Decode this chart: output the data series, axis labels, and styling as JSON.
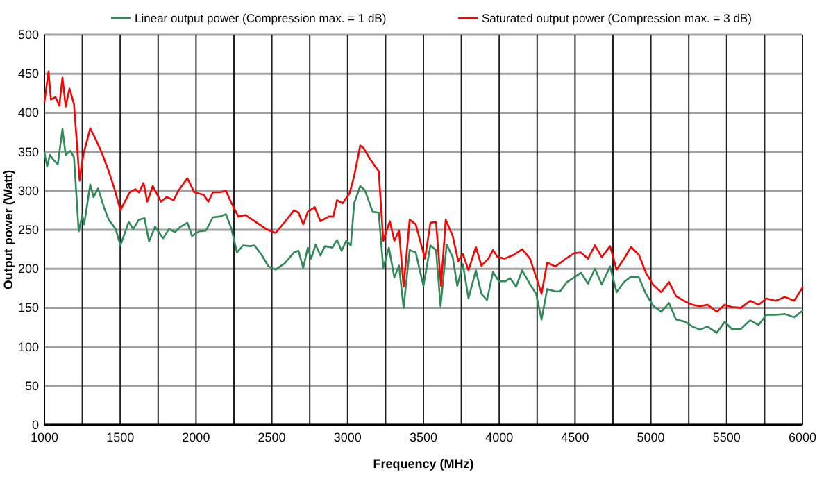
{
  "chart_data": {
    "type": "line",
    "xlabel": "Frequency (MHz)",
    "ylabel": "Output power (Watt)",
    "xlim": [
      1000,
      6000
    ],
    "xticks": [
      1000,
      1500,
      2000,
      2500,
      3000,
      3500,
      4000,
      4500,
      5000,
      5500,
      6000
    ],
    "ylim": [
      0,
      500
    ],
    "yticks": [
      0,
      50,
      100,
      150,
      200,
      250,
      300,
      350,
      400,
      450,
      500
    ],
    "grid": true,
    "legend": "top",
    "marker": "none",
    "line_style": "solid",
    "series": [
      {
        "name": "Linear output power (Compression max. = 1 dB)",
        "color": "#2e8b57",
        "x": [
          1000,
          1018,
          1036,
          1058,
          1088,
          1119,
          1140,
          1171,
          1195,
          1226,
          1250,
          1262,
          1302,
          1324,
          1354,
          1394,
          1424,
          1470,
          1501,
          1556,
          1586,
          1623,
          1660,
          1690,
          1730,
          1782,
          1822,
          1861,
          1898,
          1943,
          1974,
          2020,
          2065,
          2111,
          2157,
          2197,
          2234,
          2270,
          2310,
          2356,
          2386,
          2432,
          2478,
          2524,
          2585,
          2646,
          2676,
          2707,
          2737,
          2759,
          2789,
          2820,
          2850,
          2899,
          2930,
          2960,
          2991,
          3021,
          3043,
          3083,
          3113,
          3165,
          3205,
          3235,
          3272,
          3308,
          3339,
          3369,
          3409,
          3449,
          3500,
          3546,
          3583,
          3613,
          3653,
          3693,
          3723,
          3760,
          3797,
          3846,
          3882,
          3919,
          3959,
          3998,
          4041,
          4072,
          4111,
          4151,
          4203,
          4243,
          4279,
          4316,
          4371,
          4401,
          4447,
          4493,
          4539,
          4585,
          4631,
          4676,
          4731,
          4774,
          4823,
          4869,
          4921,
          4967,
          5013,
          5068,
          5120,
          5166,
          5227,
          5273,
          5325,
          5373,
          5435,
          5487,
          5533,
          5594,
          5655,
          5710,
          5762,
          5823,
          5884,
          5945,
          6000
        ],
        "values": [
          349,
          331,
          346,
          340,
          334,
          379,
          346,
          351,
          343,
          248,
          269,
          257,
          308,
          292,
          303,
          278,
          263,
          251,
          230,
          260,
          251,
          263,
          265,
          235,
          254,
          239,
          251,
          247,
          254,
          259,
          242,
          248,
          249,
          266,
          267,
          270,
          251,
          221,
          230,
          229,
          230,
          218,
          203,
          199,
          207,
          221,
          223,
          201,
          227,
          213,
          231,
          217,
          229,
          227,
          237,
          223,
          236,
          230,
          284,
          306,
          301,
          273,
          272,
          201,
          227,
          189,
          204,
          150,
          224,
          221,
          178,
          230,
          224,
          152,
          231,
          215,
          178,
          206,
          162,
          198,
          168,
          160,
          196,
          184,
          184,
          188,
          177,
          198,
          180,
          168,
          135,
          174,
          171,
          171,
          183,
          189,
          195,
          181,
          200,
          180,
          203,
          170,
          183,
          190,
          189,
          168,
          153,
          145,
          156,
          135,
          132,
          126,
          122,
          126,
          118,
          132,
          123,
          123,
          134,
          128,
          141,
          141,
          142,
          138,
          146
        ]
      },
      {
        "name": "Saturated output power (Compression max. = 3 dB)",
        "color": "#ff0000",
        "x": [
          1000,
          1027,
          1043,
          1073,
          1098,
          1119,
          1140,
          1165,
          1195,
          1232,
          1256,
          1302,
          1333,
          1378,
          1424,
          1464,
          1501,
          1562,
          1599,
          1623,
          1654,
          1678,
          1715,
          1769,
          1806,
          1852,
          1883,
          1943,
          1989,
          2050,
          2081,
          2111,
          2157,
          2197,
          2234,
          2279,
          2325,
          2371,
          2417,
          2462,
          2524,
          2585,
          2646,
          2676,
          2707,
          2737,
          2783,
          2820,
          2875,
          2905,
          2930,
          2967,
          3013,
          3043,
          3083,
          3104,
          3150,
          3205,
          3235,
          3278,
          3308,
          3339,
          3369,
          3409,
          3449,
          3510,
          3546,
          3583,
          3616,
          3647,
          3693,
          3729,
          3760,
          3797,
          3846,
          3882,
          3928,
          3959,
          3989,
          4035,
          4096,
          4151,
          4203,
          4249,
          4279,
          4316,
          4371,
          4432,
          4493,
          4539,
          4585,
          4631,
          4676,
          4731,
          4774,
          4823,
          4869,
          4921,
          4967,
          5013,
          5068,
          5120,
          5166,
          5227,
          5273,
          5325,
          5373,
          5435,
          5487,
          5533,
          5594,
          5655,
          5710,
          5762,
          5823,
          5884,
          5945,
          6000
        ],
        "values": [
          414,
          453,
          417,
          420,
          409,
          445,
          408,
          431,
          411,
          313,
          346,
          380,
          368,
          349,
          325,
          301,
          275,
          298,
          302,
          298,
          310,
          286,
          306,
          286,
          292,
          288,
          300,
          316,
          298,
          295,
          286,
          298,
          298,
          300,
          284,
          267,
          269,
          263,
          257,
          251,
          246,
          260,
          275,
          272,
          257,
          273,
          279,
          261,
          267,
          267,
          288,
          284,
          297,
          319,
          358,
          355,
          340,
          325,
          236,
          261,
          236,
          249,
          177,
          263,
          257,
          213,
          259,
          260,
          178,
          263,
          242,
          210,
          219,
          198,
          228,
          204,
          213,
          224,
          215,
          213,
          218,
          225,
          213,
          186,
          168,
          208,
          203,
          212,
          220,
          221,
          213,
          230,
          215,
          229,
          199,
          213,
          228,
          218,
          195,
          180,
          170,
          183,
          165,
          158,
          154,
          152,
          154,
          145,
          154,
          151,
          150,
          159,
          154,
          162,
          159,
          164,
          159,
          176
        ]
      }
    ]
  }
}
